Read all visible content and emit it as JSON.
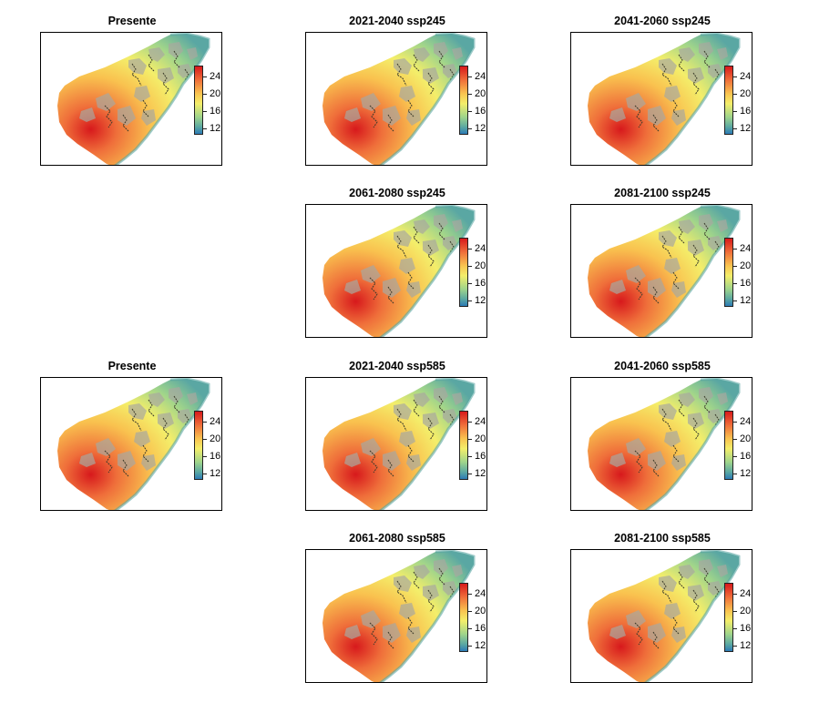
{
  "legend_ticks": [
    "24",
    "20",
    "16",
    "12"
  ],
  "colormap": [
    "#d7191c",
    "#ef6e3a",
    "#f9c24f",
    "#f4ee6a",
    "#9fd48b",
    "#5aa7a3",
    "#2c7bb6"
  ],
  "panels": [
    {
      "title": "Presente"
    },
    {
      "title": "2021-2040 ssp245"
    },
    {
      "title": "2041-2060 ssp245"
    },
    {
      "title": "2061-2080 ssp245"
    },
    {
      "title": "2081-2100 ssp245"
    },
    {
      "title": "Presente"
    },
    {
      "title": "2021-2040 ssp585"
    },
    {
      "title": "2041-2060 ssp585"
    },
    {
      "title": "2061-2080 ssp585"
    },
    {
      "title": "2081-2100 ssp585"
    }
  ]
}
